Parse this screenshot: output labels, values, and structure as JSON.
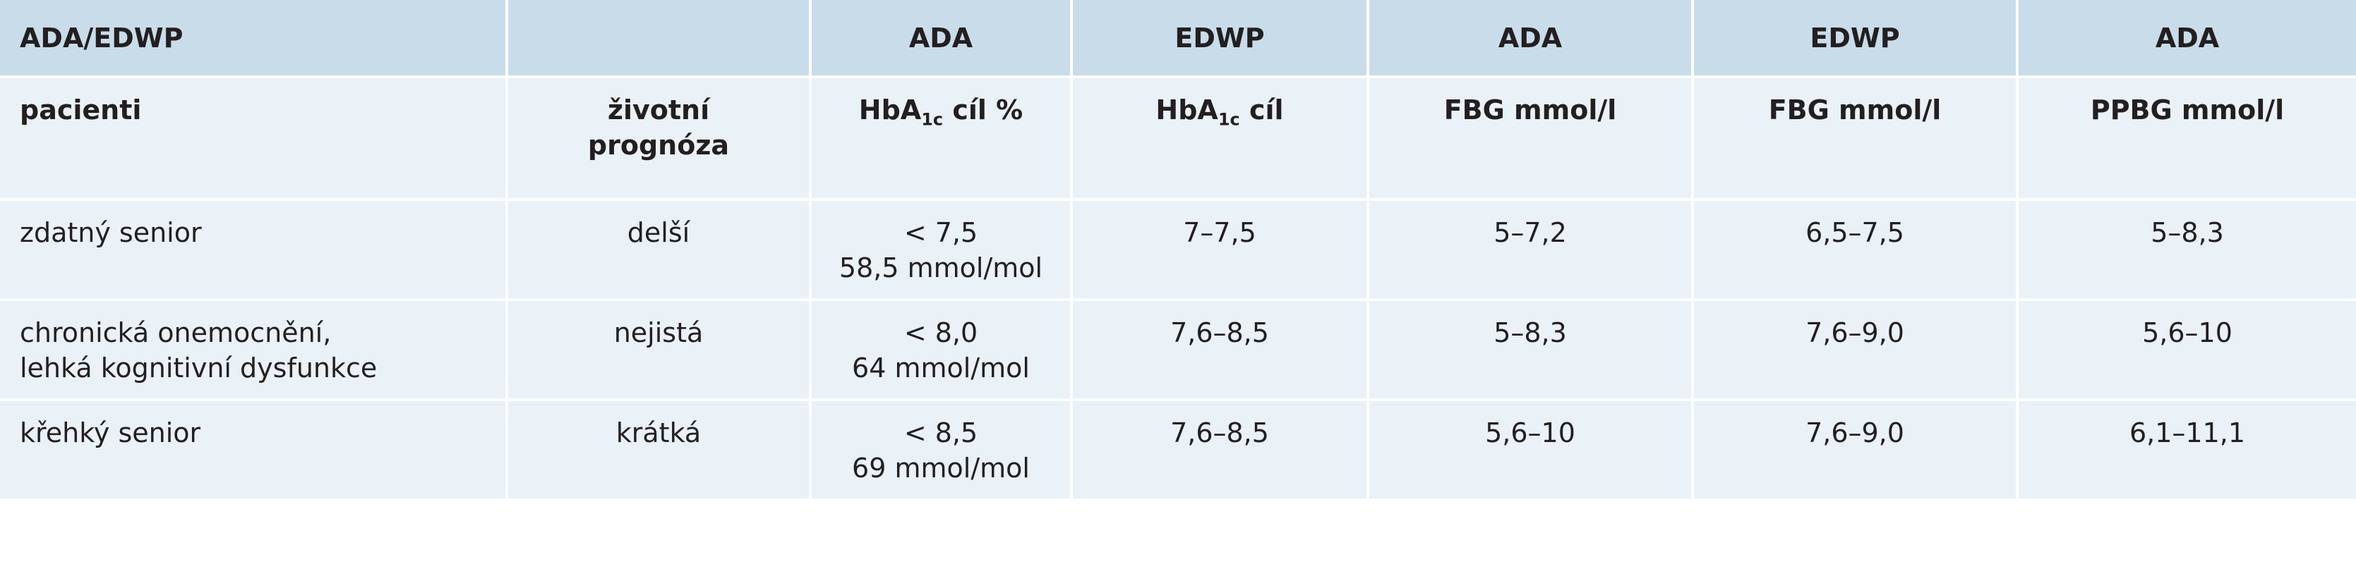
{
  "table": {
    "header_row": [
      "ADA/EDWP",
      "",
      "ADA",
      "EDWP",
      "ADA",
      "EDWP",
      "ADA"
    ],
    "subheader": {
      "patients": "pacienti",
      "prognosis_line1": "životní",
      "prognosis_line2": "prognóza",
      "hba1c_ada_pre": "HbA",
      "hba1c_ada_sub": "1c",
      "hba1c_ada_post": " cíl %",
      "hba1c_edwp_pre": "HbA",
      "hba1c_edwp_sub": "1c",
      "hba1c_edwp_post": " cíl",
      "fbg_ada": "FBG mmol/l",
      "fbg_edwp": "FBG mmol/l",
      "ppbg_ada": "PPBG mmol/l"
    },
    "rows": [
      {
        "patients": "zdatný senior",
        "prognosis": "delší",
        "hba1c_ada_line1": "< 7,5",
        "hba1c_ada_line2": "58,5 mmol/mol",
        "hba1c_edwp": "7–7,5",
        "fbg_ada": "5–7,2",
        "fbg_edwp": "6,5–7,5",
        "ppbg_ada": "5–8,3"
      },
      {
        "patients_line1": "chronická onemocnění,",
        "patients_line2": "lehká kognitivní dysfunkce",
        "prognosis": "nejistá",
        "hba1c_ada_line1": "< 8,0",
        "hba1c_ada_line2": "64 mmol/mol",
        "hba1c_edwp": "7,6–8,5",
        "fbg_ada": "5–8,3",
        "fbg_edwp": "7,6–9,0",
        "ppbg_ada": "5,6–10"
      },
      {
        "patients": "křehký senior",
        "prognosis": "krátká",
        "hba1c_ada_line1": "< 8,5",
        "hba1c_ada_line2": "69 mmol/mol",
        "hba1c_edwp": "7,6–8,5",
        "fbg_ada": "5,6–10",
        "fbg_edwp": "7,6–9,0",
        "ppbg_ada": "6,1–11,1"
      }
    ],
    "colors": {
      "header_bg": "#c9dcea",
      "body_bg": "#eaf1f7",
      "text": "#231f20",
      "separator": "#ffffff"
    }
  }
}
